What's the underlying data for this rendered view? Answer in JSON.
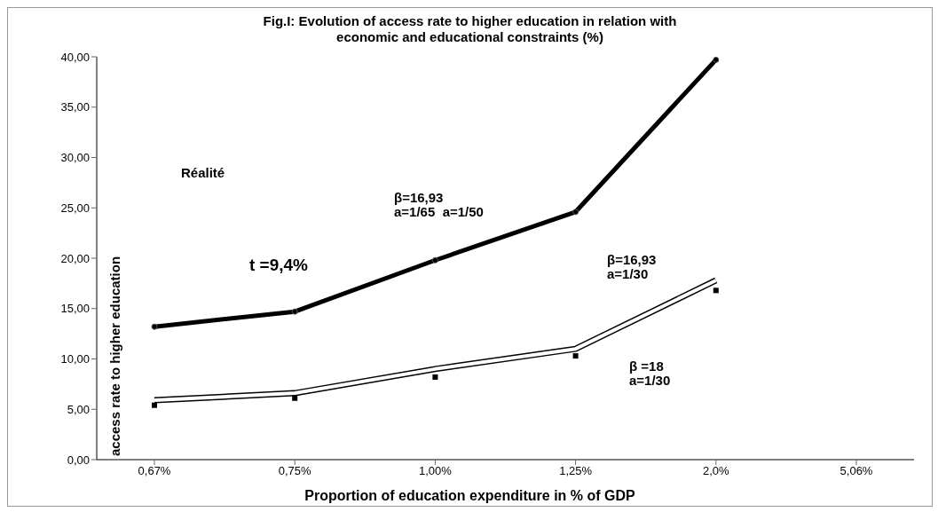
{
  "chart_data": {
    "type": "line",
    "title": "Fig.I: Evolution of access rate to higher education in relation with\neconomic and educational constraints (%)",
    "xlabel": "Proportion of education expenditure in % of GDP",
    "ylabel": "access rate to higher education",
    "categories": [
      "0,67%",
      "0,75%",
      "1,00%",
      "1,25%",
      "2,0%",
      "5,06%"
    ],
    "series": [
      {
        "color": "#000000",
        "marker": "circle",
        "values": [
          13.2,
          14.7,
          19.8,
          24.6,
          39.7,
          null
        ]
      },
      {
        "color": "#000000",
        "marker": "none",
        "values": [
          5.9,
          6.6,
          9.0,
          11.0,
          17.8,
          null
        ]
      },
      {
        "type": "scatter",
        "color": "#000000",
        "marker": "square",
        "values": [
          5.4,
          6.1,
          8.2,
          10.3,
          16.8,
          null
        ]
      }
    ],
    "ylim": [
      0,
      40
    ],
    "yticks": [
      {
        "value": 0,
        "label": "0,00"
      },
      {
        "value": 5,
        "label": "5,00"
      },
      {
        "value": 10,
        "label": "10,00"
      },
      {
        "value": 15,
        "label": "15,00"
      },
      {
        "value": 20,
        "label": "20,00"
      },
      {
        "value": 25,
        "label": "25,00"
      },
      {
        "value": 30,
        "label": "30,00"
      },
      {
        "value": 35,
        "label": "35,00"
      },
      {
        "value": 40,
        "label": "40,00"
      }
    ],
    "annotations": [
      "Réalité",
      "t =9,4%",
      "β=16,93\na=1/65  a=1/50",
      "β=16,93\na=1/30",
      "β =18\na=1/30"
    ]
  }
}
